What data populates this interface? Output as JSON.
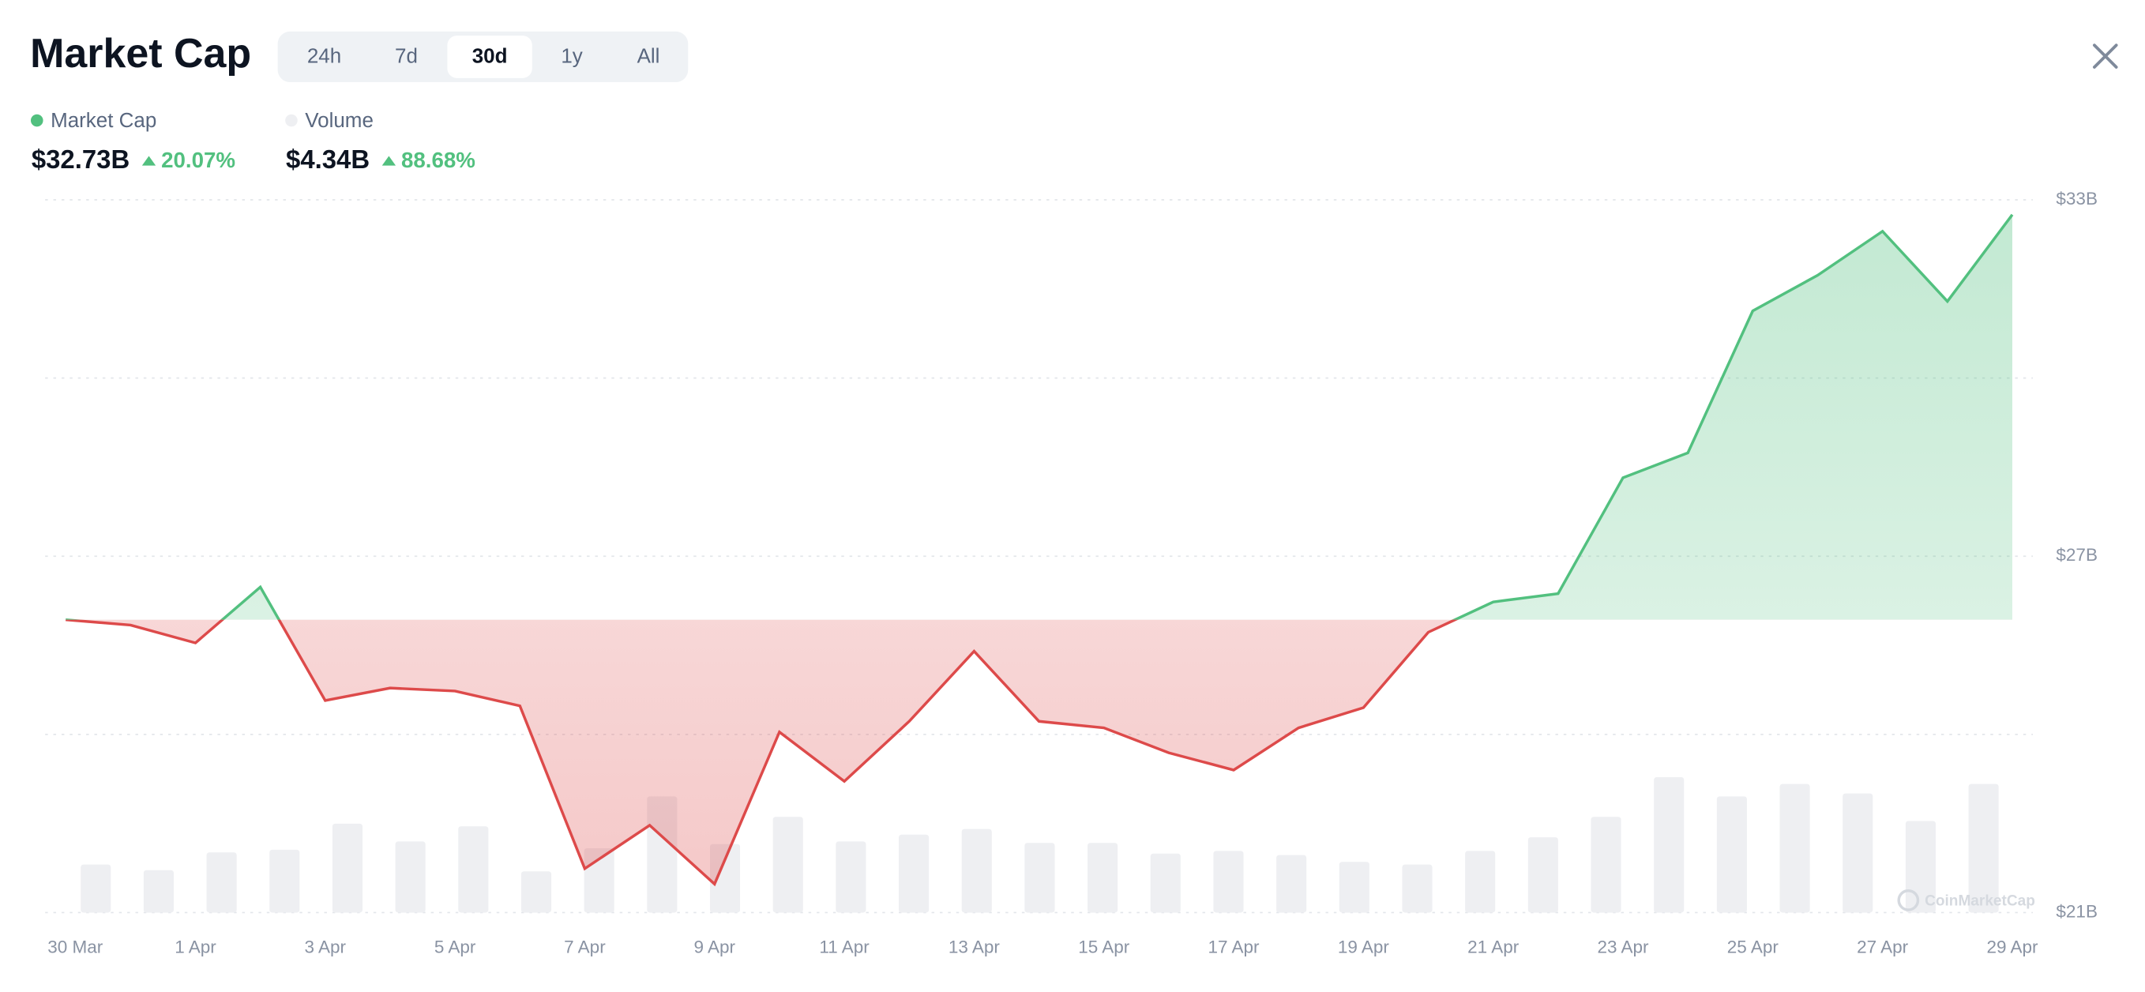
{
  "chart_data": {
    "type": "line",
    "title": "Market Cap",
    "tabs": [
      "24h",
      "7d",
      "30d",
      "1y",
      "All"
    ],
    "active_tab": 2,
    "categories": [
      "30 Mar",
      null,
      "1 Apr",
      null,
      "3 Apr",
      null,
      "5 Apr",
      null,
      "7 Apr",
      null,
      "9 Apr",
      null,
      "11 Apr",
      null,
      "13 Apr",
      null,
      "15 Apr",
      null,
      "17 Apr",
      null,
      "19 Apr",
      null,
      "21 Apr",
      null,
      "23 Apr",
      null,
      "25 Apr",
      null,
      "27 Apr",
      null,
      "29 Apr"
    ],
    "up_color": "#52c07f",
    "down_color": "#dd4a4a",
    "series": [
      {
        "name": "Market Cap",
        "color": "#52c07f",
        "current": {
          "value": 32.73,
          "label": "$32.73B"
        },
        "change": {
          "value": 20.07,
          "label": "20.07%"
        },
        "values": [
          25.93,
          25.84,
          25.54,
          26.48,
          24.57,
          24.78,
          24.73,
          24.48,
          21.74,
          22.47,
          21.48,
          24.04,
          23.21,
          24.22,
          25.4,
          24.22,
          24.11,
          23.69,
          23.4,
          24.11,
          24.45,
          25.72,
          26.23,
          26.37,
          28.32,
          28.74,
          31.13,
          31.73,
          32.47,
          31.29,
          32.75
        ]
      },
      {
        "name": "Volume",
        "color": "#eeeff2",
        "current": {
          "value": 4.34,
          "label": "$4.34B"
        },
        "change": {
          "value": 88.68,
          "label": "88.68%"
        },
        "values": [
          1.62,
          1.43,
          2.03,
          2.12,
          3.0,
          2.4,
          2.91,
          1.39,
          2.17,
          3.92,
          2.31,
          3.23,
          2.4,
          2.63,
          2.82,
          2.35,
          2.35,
          1.99,
          2.08,
          1.94,
          1.71,
          1.62,
          2.08,
          2.54,
          3.23,
          4.57,
          3.92,
          4.34,
          4.02,
          3.09,
          4.34
        ]
      }
    ],
    "ylim": [
      21,
      33
    ],
    "yticks": [
      {
        "value": 33,
        "label": "$33B"
      },
      {
        "value": 27,
        "label": "$27B"
      },
      {
        "value": 21,
        "label": "$21B"
      }
    ],
    "gridlines": [
      21,
      24,
      27,
      30,
      33
    ],
    "watermark": "CoinMarketCap"
  }
}
